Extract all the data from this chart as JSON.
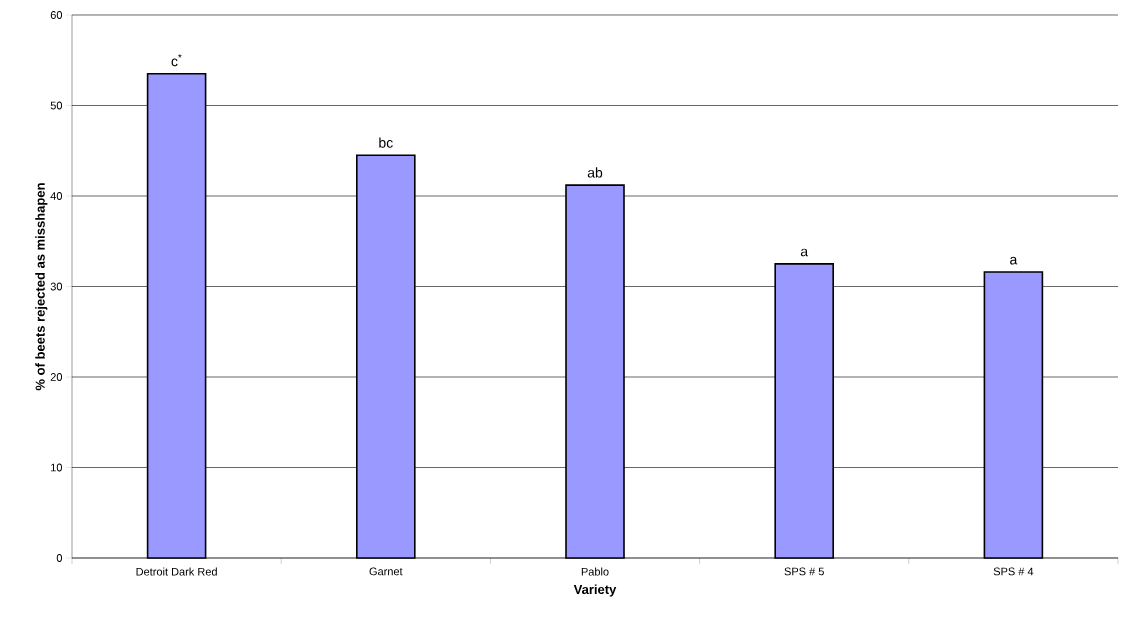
{
  "chart_data": {
    "type": "bar",
    "xlabel": "Variety",
    "ylabel": "% of beets rejected as misshapen",
    "categories": [
      "Detroit Dark Red",
      "Garnet",
      "Pablo",
      "SPS # 5",
      "SPS # 4"
    ],
    "values": [
      53.5,
      44.5,
      41.2,
      32.5,
      31.6
    ],
    "color": "#9999ff",
    "ylim": [
      0,
      60
    ],
    "yticks": [
      0,
      10,
      20,
      30,
      40,
      50,
      60
    ],
    "grid": "y",
    "annotations": [
      {
        "text": "c$^{*}$",
        "x": "Detroit Dark Red",
        "y": 53.5
      },
      {
        "text": "bc",
        "x": "Garnet",
        "y": 44.5
      },
      {
        "text": "ab",
        "x": "Pablo",
        "y": 41.2
      },
      {
        "text": "a",
        "x": "SPS # 5",
        "y": 32.5
      },
      {
        "text": "a",
        "x": "SPS # 4",
        "y": 31.6
      }
    ]
  }
}
